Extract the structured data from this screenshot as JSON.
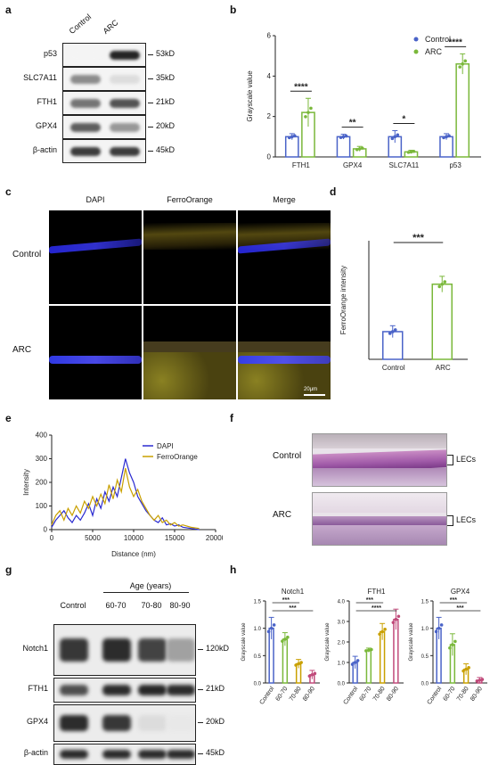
{
  "panels": {
    "a": {
      "label": "a",
      "columns": [
        "Control",
        "ARC"
      ],
      "rows": [
        {
          "name": "p53",
          "kd": "53kD"
        },
        {
          "name": "SLC7A11",
          "kd": "35kD"
        },
        {
          "name": "FTH1",
          "kd": "21kD"
        },
        {
          "name": "GPX4",
          "kd": "20kD"
        },
        {
          "name": "β-actin",
          "kd": "45kD"
        }
      ]
    },
    "b": {
      "label": "b"
    },
    "c": {
      "label": "c",
      "columns": [
        "DAPI",
        "FerroOrange",
        "Merge"
      ],
      "rows": [
        "Control",
        "ARC"
      ],
      "scalebar": "20μm"
    },
    "d": {
      "label": "d"
    },
    "e": {
      "label": "e"
    },
    "f": {
      "label": "f",
      "rows": [
        "Control",
        "ARC"
      ],
      "annotation": "LECs"
    },
    "g": {
      "label": "g",
      "group_header": "Age (years)",
      "columns": [
        "Control",
        "60-70",
        "70-80",
        "80-90"
      ],
      "rows": [
        {
          "name": "Notch1",
          "kd": "120kD"
        },
        {
          "name": "FTH1",
          "kd": "21kD"
        },
        {
          "name": "GPX4",
          "kd": "20kD"
        },
        {
          "name": "β-actin",
          "kd": "45kD"
        }
      ]
    },
    "h": {
      "label": "h"
    }
  },
  "chart_data": [
    {
      "id": "b",
      "type": "bar",
      "categories": [
        "FTH1",
        "GPX4",
        "SLC7A11",
        "p53"
      ],
      "series": [
        {
          "name": "Control",
          "values": [
            1.0,
            1.0,
            1.0,
            1.0
          ],
          "errors": [
            0.15,
            0.12,
            0.3,
            0.15
          ],
          "color": "#4a63c8"
        },
        {
          "name": "ARC",
          "values": [
            2.2,
            0.4,
            0.25,
            4.6
          ],
          "errors": [
            0.7,
            0.12,
            0.08,
            0.5
          ],
          "color": "#7ab83a"
        }
      ],
      "ylabel": "Grayscale value",
      "ylim": [
        0,
        6
      ],
      "yticks": [
        0,
        2,
        4,
        6
      ],
      "significance": [
        "****",
        "**",
        "*",
        "****"
      ],
      "legend": "top-right",
      "grid": false
    },
    {
      "id": "d",
      "type": "bar",
      "categories": [
        "Control",
        "ARC"
      ],
      "values": [
        70,
        190
      ],
      "errors": [
        15,
        20
      ],
      "colors": [
        "#4a63c8",
        "#7ab83a"
      ],
      "ylabel": "FerroOrange intensity",
      "ylim": [
        0,
        300
      ],
      "yticks": [],
      "significance": [
        "***"
      ],
      "grid": false
    },
    {
      "id": "e",
      "type": "line",
      "xlabel": "Distance (nm)",
      "ylabel": "Intensity",
      "xlim": [
        0,
        20000
      ],
      "ylim": [
        0,
        400
      ],
      "xticks": [
        0,
        5000,
        10000,
        15000,
        20000
      ],
      "yticks": [
        0,
        100,
        200,
        300,
        400
      ],
      "legend": "top-right",
      "grid": false,
      "series": [
        {
          "name": "DAPI",
          "color": "#2a2ad0",
          "x": [
            0,
            500,
            1000,
            1500,
            2000,
            2500,
            3000,
            3500,
            4000,
            4500,
            5000,
            5500,
            6000,
            6500,
            7000,
            7500,
            8000,
            8500,
            9000,
            9500,
            10000,
            10500,
            11000,
            11500,
            12000,
            12500,
            13000,
            13500,
            14000,
            14500,
            15000,
            15500,
            16000,
            17000,
            18000
          ],
          "y": [
            10,
            40,
            60,
            80,
            50,
            30,
            60,
            40,
            70,
            110,
            60,
            130,
            90,
            160,
            120,
            180,
            140,
            220,
            300,
            240,
            200,
            140,
            110,
            80,
            60,
            40,
            30,
            50,
            20,
            25,
            15,
            20,
            10,
            5,
            0
          ]
        },
        {
          "name": "FerroOrange",
          "color": "#c9a000",
          "x": [
            0,
            500,
            1000,
            1500,
            2000,
            2500,
            3000,
            3500,
            4000,
            4500,
            5000,
            5500,
            6000,
            6500,
            7000,
            7500,
            8000,
            8500,
            9000,
            9500,
            10000,
            10500,
            11000,
            11500,
            12000,
            12500,
            13000,
            13500,
            14000,
            14500,
            15000,
            15500,
            16000,
            17000,
            18000
          ],
          "y": [
            20,
            60,
            80,
            40,
            90,
            60,
            100,
            70,
            120,
            90,
            140,
            100,
            150,
            110,
            190,
            130,
            210,
            160,
            260,
            180,
            140,
            170,
            120,
            90,
            60,
            40,
            60,
            30,
            40,
            20,
            30,
            15,
            20,
            10,
            5
          ]
        }
      ]
    },
    {
      "id": "h1",
      "type": "bar",
      "title": "Notch1",
      "categories": [
        "Control",
        "60-70",
        "70-80",
        "80-90"
      ],
      "values": [
        1.0,
        0.8,
        0.35,
        0.15
      ],
      "errors": [
        0.2,
        0.12,
        0.08,
        0.08
      ],
      "colors": [
        "#4a63c8",
        "#7ab83a",
        "#c9a000",
        "#c04a7a"
      ],
      "ylabel": "Grayscale value",
      "ylim": [
        0,
        1.5
      ],
      "yticks": [
        0.0,
        0.5,
        1.0,
        1.5
      ],
      "significance": [
        "***",
        "***"
      ],
      "grid": false
    },
    {
      "id": "h2",
      "type": "bar",
      "title": "FTH1",
      "categories": [
        "Control",
        "60-70",
        "70-80",
        "80-90"
      ],
      "values": [
        1.0,
        1.6,
        2.5,
        3.1
      ],
      "errors": [
        0.3,
        0.1,
        0.4,
        0.5
      ],
      "colors": [
        "#4a63c8",
        "#7ab83a",
        "#c9a000",
        "#c04a7a"
      ],
      "ylabel": "Grayscale value",
      "ylim": [
        0,
        4.0
      ],
      "yticks": [
        0.0,
        1.0,
        2.0,
        3.0,
        4.0
      ],
      "significance": [
        "***",
        "****"
      ],
      "grid": false
    },
    {
      "id": "h3",
      "type": "bar",
      "title": "GPX4",
      "categories": [
        "Control",
        "60-70",
        "70-80",
        "80-90"
      ],
      "values": [
        1.0,
        0.7,
        0.25,
        0.05
      ],
      "errors": [
        0.2,
        0.2,
        0.1,
        0.05
      ],
      "colors": [
        "#4a63c8",
        "#7ab83a",
        "#c9a000",
        "#c04a7a"
      ],
      "ylabel": "Grayscale value",
      "ylim": [
        0,
        1.5
      ],
      "yticks": [
        0.0,
        0.5,
        1.0,
        1.5
      ],
      "significance": [
        "***",
        "***"
      ],
      "grid": false
    }
  ]
}
